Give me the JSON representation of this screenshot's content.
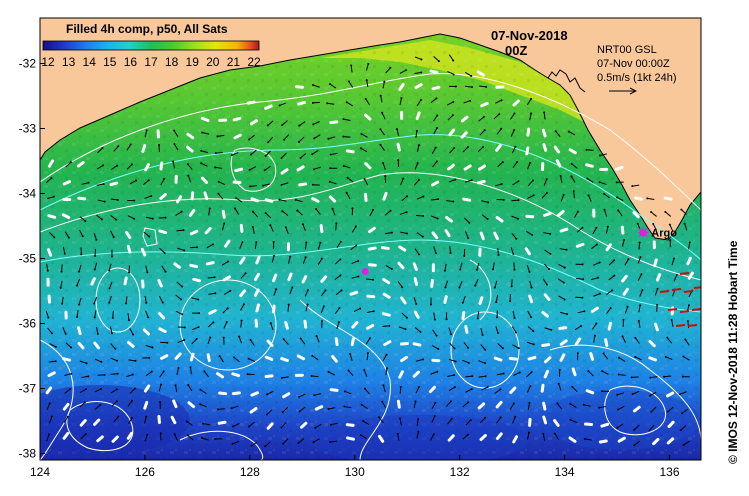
{
  "colorbar": {
    "title": "Filled 4h comp, p50, All Sats",
    "ticks": [
      "12",
      "13",
      "14",
      "15",
      "16",
      "17",
      "18",
      "19",
      "20",
      "21",
      "22"
    ],
    "colors": [
      "#1a0a8c",
      "#1e3ccc",
      "#1e7cf0",
      "#1ab4f0",
      "#20d2c8",
      "#1ebe5a",
      "#46cc2e",
      "#9ade1e",
      "#e6e60a",
      "#f5b40a",
      "#e6501e",
      "#a01e1e"
    ]
  },
  "header": {
    "date": "07-Nov-2018",
    "hour": "00Z"
  },
  "current_info": {
    "line1": "NRT00 GSL",
    "line2": "07-Nov 00:00Z",
    "line3": "0.5m/s (1kt 24h)"
  },
  "argo": {
    "label": "Argo",
    "lon": 135.5,
    "lat": -34.6,
    "color": "#e020e0"
  },
  "float_marker": {
    "lon": 130.2,
    "lat": -35.2,
    "color": "#e020e0"
  },
  "axes": {
    "lon_ticks": [
      "124",
      "126",
      "128",
      "130",
      "132",
      "134",
      "136"
    ],
    "lat_ticks": [
      "-32",
      "-33",
      "-34",
      "-35",
      "-36",
      "-37",
      "-38"
    ],
    "lon_range": [
      124,
      136.6
    ],
    "lat_range": [
      -38.1,
      -31.3
    ]
  },
  "side_text": "©  IMOS 12-Nov-2018 11:28 Hobart Time",
  "colors": {
    "land": "#f9c89a",
    "coast": "#000000",
    "vector": "#000000",
    "fast_vector": "#ffffff",
    "red_vector": "#e00000"
  }
}
